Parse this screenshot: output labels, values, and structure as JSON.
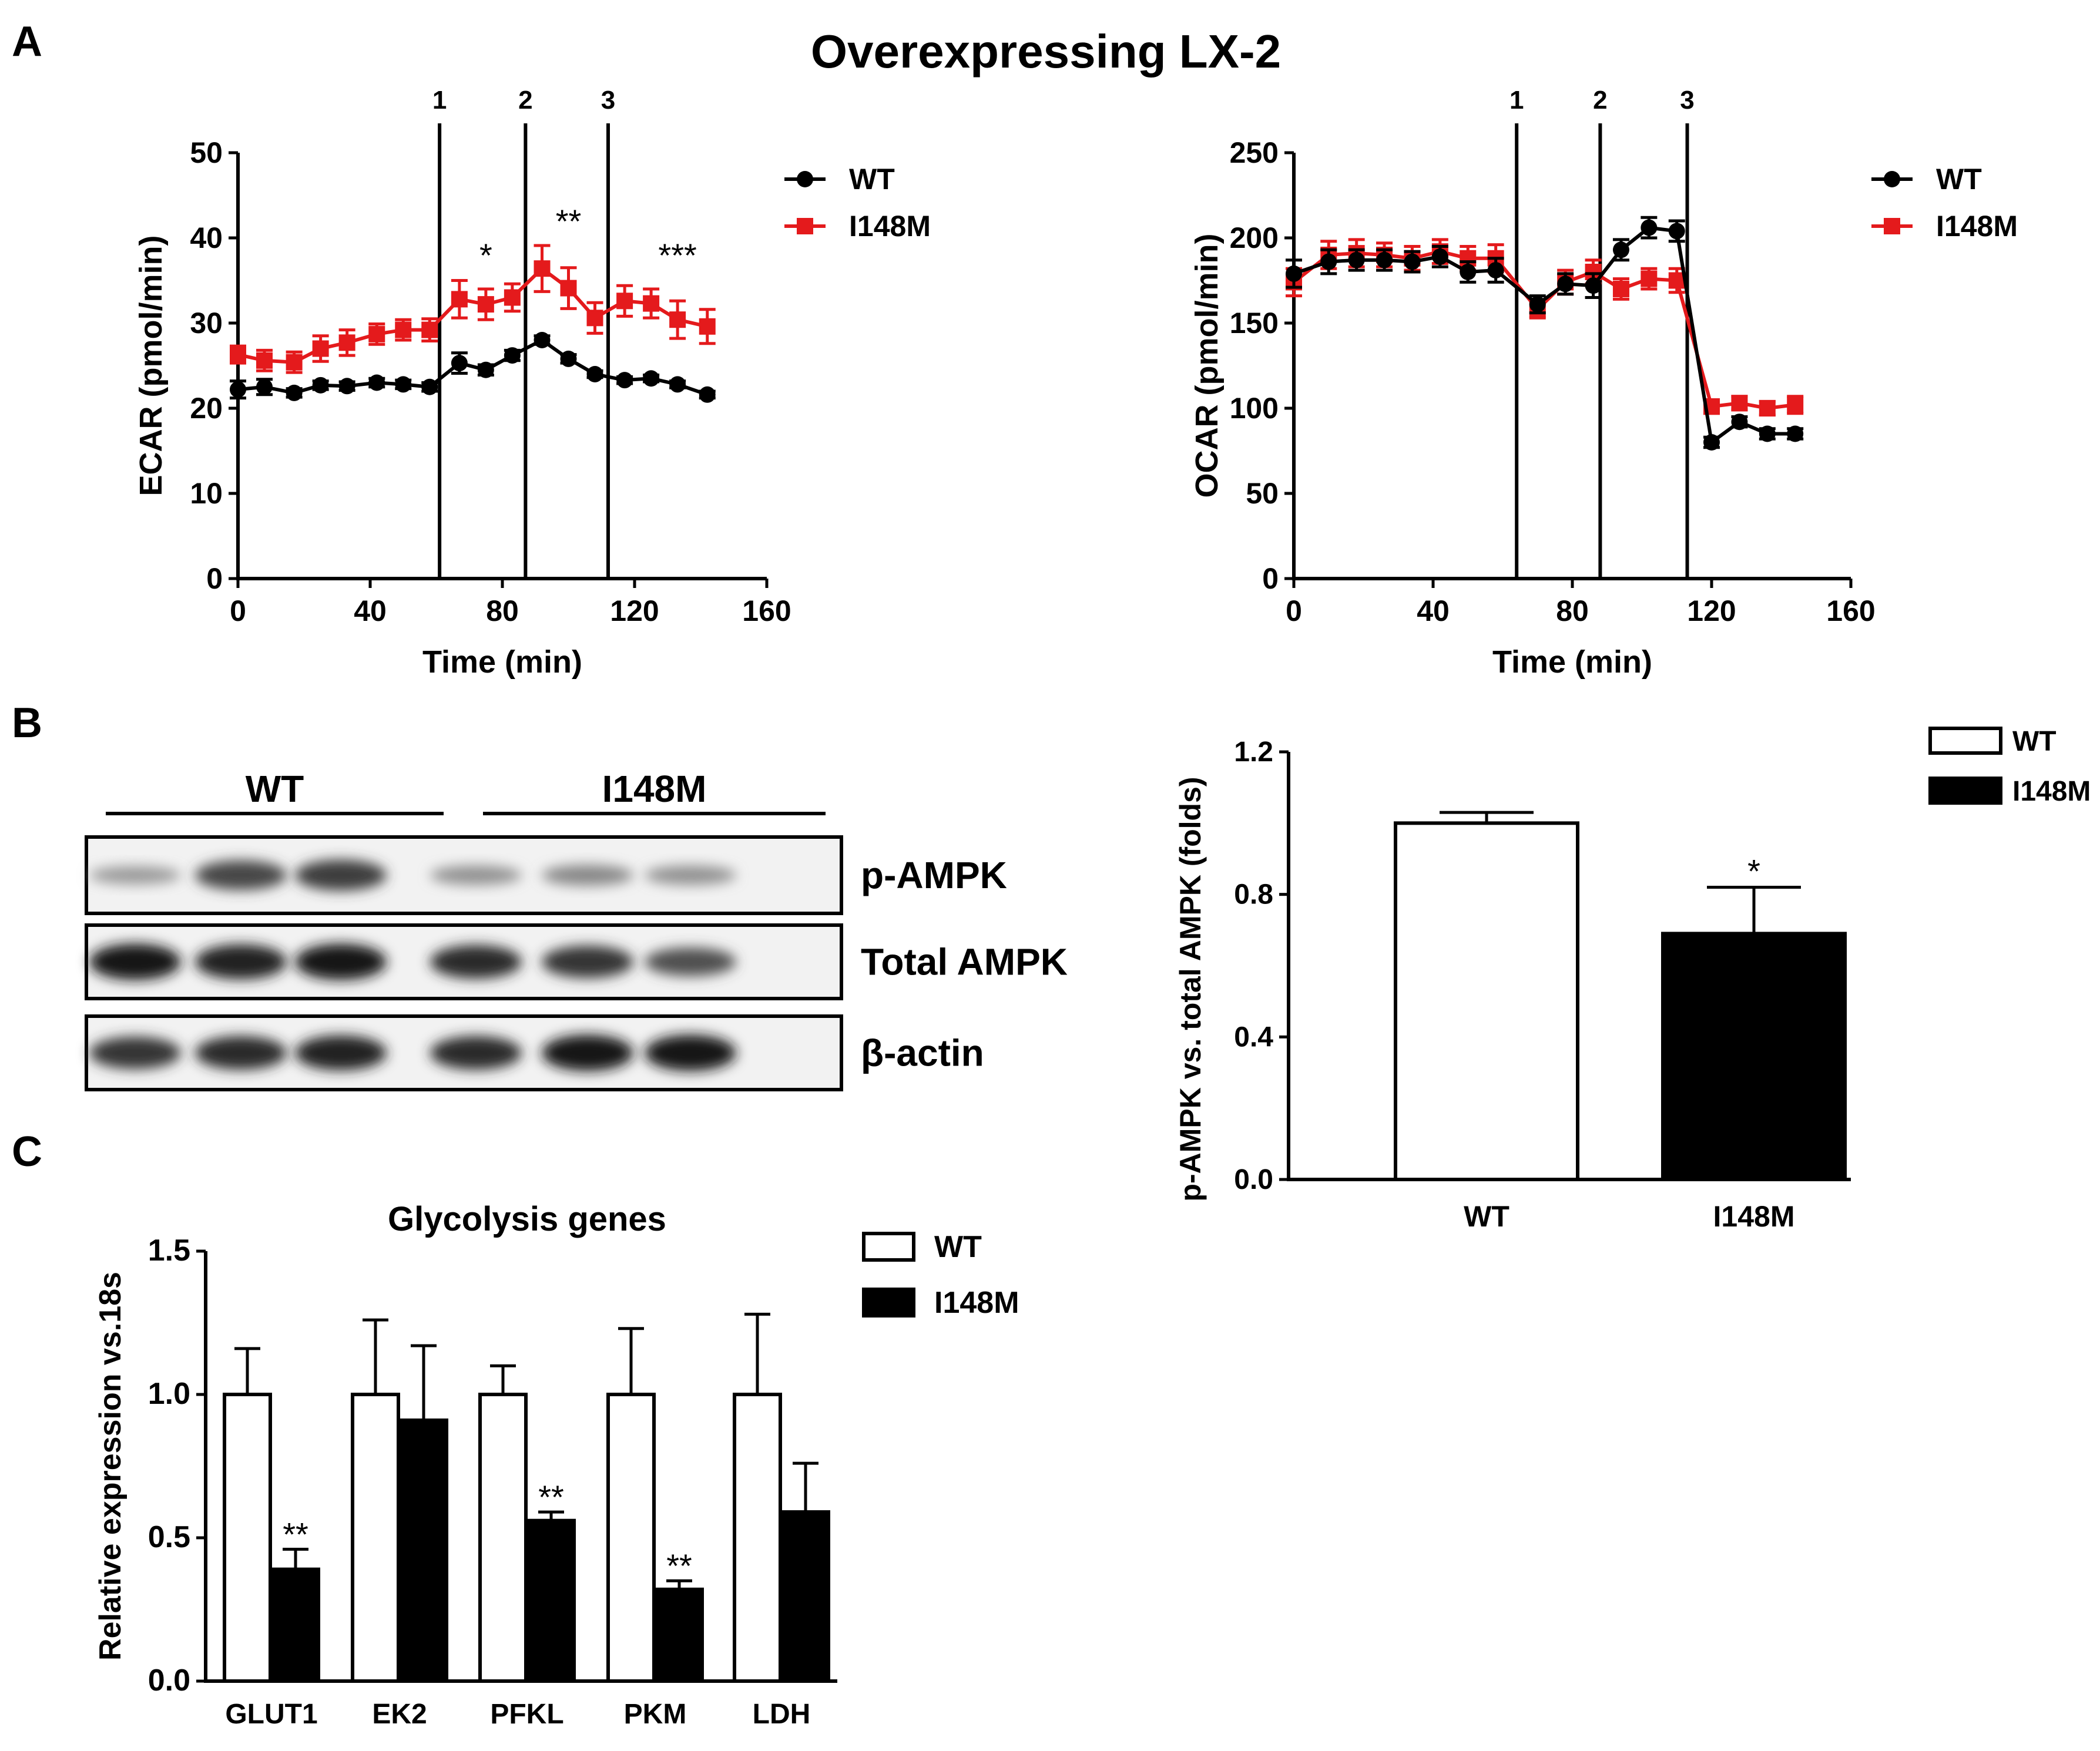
{
  "figure": {
    "title": "Overexpressing LX-2",
    "panel_labels": [
      "A",
      "B",
      "C"
    ]
  },
  "colors": {
    "wt": "#000000",
    "i148m": "#e41a1c",
    "axis": "#000000"
  },
  "chart_data": [
    {
      "id": "ecar",
      "type": "line",
      "title": "",
      "xlabel": "Time (min)",
      "ylabel": "ECAR (pmol/min)",
      "xlim": [
        0,
        160
      ],
      "ylim": [
        0,
        50
      ],
      "xticks": [
        "0",
        "40",
        "80",
        "120",
        "160"
      ],
      "yticks": [
        "0",
        "10",
        "20",
        "30",
        "40",
        "50"
      ],
      "xtick_values": [
        0,
        40,
        80,
        120,
        160
      ],
      "ytick_values": [
        0,
        10,
        20,
        30,
        40,
        50
      ],
      "injections": [
        {
          "label": "1",
          "x": 61
        },
        {
          "label": "2",
          "x": 87
        },
        {
          "label": "3",
          "x": 112
        }
      ],
      "x": [
        0,
        8,
        17,
        25,
        33,
        42,
        50,
        58,
        67,
        75,
        83,
        92,
        100,
        108,
        117,
        125,
        133,
        142
      ],
      "series": [
        {
          "name": "WT",
          "color": "#000000",
          "marker": "circle",
          "values": [
            22.2,
            22.5,
            21.8,
            22.7,
            22.6,
            23.0,
            22.8,
            22.5,
            25.3,
            24.5,
            26.2,
            28.0,
            25.8,
            24.0,
            23.3,
            23.5,
            22.8,
            21.6
          ],
          "errors": [
            1.0,
            0.9,
            0.5,
            0.5,
            0.5,
            0.5,
            0.5,
            0.5,
            1.2,
            0.6,
            0.6,
            0.5,
            0.5,
            0.4,
            0.4,
            0.4,
            0.4,
            0.4
          ]
        },
        {
          "name": "I148M",
          "color": "#e41a1c",
          "marker": "square",
          "values": [
            26.3,
            25.6,
            25.4,
            27.0,
            27.7,
            28.7,
            29.2,
            29.2,
            32.8,
            32.2,
            33.0,
            36.4,
            34.1,
            30.6,
            32.6,
            32.3,
            30.4,
            29.6
          ],
          "errors": [
            1.0,
            1.2,
            1.2,
            1.5,
            1.5,
            1.2,
            1.2,
            1.3,
            2.2,
            1.8,
            1.6,
            2.7,
            2.4,
            1.8,
            1.8,
            1.7,
            2.2,
            2.0
          ]
        }
      ],
      "annotations": [
        {
          "text": "*",
          "x": 75,
          "y": 38
        },
        {
          "text": "**",
          "x": 100,
          "y": 42
        },
        {
          "text": "***",
          "x": 133,
          "y": 38
        }
      ],
      "legend": "top-right"
    },
    {
      "id": "ocar",
      "type": "line",
      "title": "",
      "xlabel": "Time (min)",
      "ylabel": "OCAR (pmol/min)",
      "xlim": [
        0,
        160
      ],
      "ylim": [
        0,
        250
      ],
      "xticks": [
        "0",
        "40",
        "80",
        "120",
        "160"
      ],
      "yticks": [
        "0",
        "50",
        "100",
        "150",
        "200",
        "250"
      ],
      "xtick_values": [
        0,
        40,
        80,
        120,
        160
      ],
      "ytick_values": [
        0,
        50,
        100,
        150,
        200,
        250
      ],
      "injections": [
        {
          "label": "1",
          "x": 64
        },
        {
          "label": "2",
          "x": 88
        },
        {
          "label": "3",
          "x": 113
        }
      ],
      "x": [
        0,
        10,
        18,
        26,
        34,
        42,
        50,
        58,
        70,
        78,
        86,
        94,
        102,
        110,
        120,
        128,
        136,
        144
      ],
      "series": [
        {
          "name": "WT",
          "color": "#000000",
          "marker": "circle",
          "values": [
            179,
            186,
            187,
            187,
            186,
            189,
            180,
            181,
            161,
            173,
            172,
            193,
            206,
            204,
            80,
            92,
            85,
            85
          ],
          "errors": [
            8,
            7,
            6,
            6,
            6,
            6,
            6,
            7,
            5,
            6,
            7,
            6,
            6,
            6,
            3,
            3,
            3,
            3
          ]
        },
        {
          "name": "I148M",
          "color": "#e41a1c",
          "marker": "square",
          "values": [
            174,
            190,
            191,
            190,
            188,
            192,
            188,
            188,
            158,
            174,
            180,
            170,
            176,
            175,
            101,
            103,
            100,
            102
          ],
          "errors": [
            8,
            8,
            8,
            7,
            7,
            7,
            7,
            8,
            5,
            7,
            7,
            6,
            6,
            7,
            4,
            4,
            4,
            5
          ]
        }
      ],
      "legend": "top-right"
    },
    {
      "id": "pampk",
      "type": "bar",
      "title": "",
      "xlabel": "",
      "ylabel": "p-AMPK vs. total AMPK (folds)",
      "ylim": [
        0,
        1.2
      ],
      "yticks": [
        "0.0",
        "0.4",
        "0.8",
        "1.2"
      ],
      "ytick_values": [
        0,
        0.4,
        0.8,
        1.2
      ],
      "categories": [
        "WT",
        "I148M"
      ],
      "values": [
        1.0,
        0.69
      ],
      "errors": [
        0.03,
        0.13
      ],
      "fills": [
        "#ffffff",
        "#000000"
      ],
      "annotations": [
        {
          "text": "*",
          "category": "I148M"
        }
      ],
      "legend_entries": [
        {
          "name": "WT",
          "fill": "#ffffff"
        },
        {
          "name": "I148M",
          "fill": "#000000"
        }
      ],
      "legend": "top-right"
    },
    {
      "id": "glycolysis",
      "type": "bar",
      "title": "Glycolysis genes",
      "xlabel": "",
      "ylabel": "Relative expression vs.18s",
      "ylim": [
        0,
        1.5
      ],
      "yticks": [
        "0.0",
        "0.5",
        "1.0",
        "1.5"
      ],
      "ytick_values": [
        0,
        0.5,
        1.0,
        1.5
      ],
      "categories": [
        "GLUT1",
        "EK2",
        "PFKL",
        "PKM",
        "LDH"
      ],
      "series": [
        {
          "name": "WT",
          "fill": "#ffffff",
          "values": [
            1.0,
            1.0,
            1.0,
            1.0,
            1.0
          ],
          "errors": [
            0.16,
            0.26,
            0.1,
            0.23,
            0.28
          ]
        },
        {
          "name": "I148M",
          "fill": "#000000",
          "values": [
            0.39,
            0.91,
            0.56,
            0.32,
            0.59
          ],
          "errors": [
            0.07,
            0.26,
            0.03,
            0.03,
            0.17
          ]
        }
      ],
      "annotations": [
        {
          "text": "**",
          "category": "GLUT1"
        },
        {
          "text": "**",
          "category": "PFKL"
        },
        {
          "text": "**",
          "category": "PKM"
        }
      ],
      "legend": "top-right"
    }
  ],
  "blot": {
    "groups": [
      "WT",
      "I148M"
    ],
    "rows": [
      "p-AMPK",
      "Total AMPK",
      "β-actin"
    ],
    "lane_intensities": [
      [
        0.25,
        0.7,
        0.75,
        0.3,
        0.35,
        0.3
      ],
      [
        0.95,
        0.9,
        0.95,
        0.85,
        0.8,
        0.65
      ],
      [
        0.8,
        0.85,
        0.9,
        0.85,
        0.95,
        0.95
      ]
    ]
  }
}
